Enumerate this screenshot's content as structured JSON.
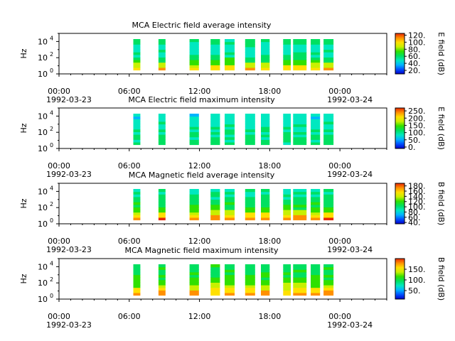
{
  "figure": {
    "background": "#ffffff",
    "colormap": [
      "#0000c8",
      "#0050ff",
      "#00b4ff",
      "#00e8c0",
      "#00e060",
      "#30e000",
      "#c8f000",
      "#ffe000",
      "#ff9000",
      "#e82800"
    ]
  },
  "chart_data": [
    {
      "type": "heatmap",
      "title": "MCA  Electric field average intensity",
      "ylabel": "Hz",
      "ylim": [
        1,
        100000
      ],
      "yscale": "log",
      "y_ticks": [
        1,
        100,
        10000
      ],
      "y_tick_labels": [
        "10",
        "10",
        "10"
      ],
      "y_tick_exponents": [
        "0",
        "2",
        "4"
      ],
      "xlim": [
        0,
        28
      ],
      "x_ticks": [
        0,
        6,
        12,
        18,
        24
      ],
      "x_tick_labels": [
        "00:00",
        "06:00",
        "12:00",
        "18:00",
        "00:00"
      ],
      "x_date_labels": [
        "1992-03-23",
        "1992-03-24"
      ],
      "colorbar": {
        "label": "E field (dB)",
        "range": [
          10,
          125
        ],
        "ticks": [
          20,
          40,
          60,
          80,
          100,
          120
        ],
        "tick_labels": [
          "20.",
          "40.",
          "60.",
          "80.",
          "100.",
          "120."
        ]
      },
      "data_intervals_hours": [
        [
          6.35,
          6.95
        ],
        [
          8.5,
          9.1
        ],
        [
          11.15,
          11.95
        ],
        [
          12.95,
          13.75
        ],
        [
          14.15,
          15.0
        ],
        [
          15.9,
          16.75
        ],
        [
          17.25,
          18.0
        ],
        [
          19.15,
          19.8
        ],
        [
          20.0,
          21.15
        ],
        [
          21.5,
          22.3
        ],
        [
          22.6,
          23.45
        ]
      ],
      "freq_range_hz": [
        3,
        20000
      ],
      "value_profile": [
        102,
        92,
        80,
        70,
        62,
        56,
        52,
        50,
        48,
        50,
        58,
        60
      ],
      "grid": false
    },
    {
      "type": "heatmap",
      "title": "MCA  Electric field maximum intensity",
      "ylabel": "Hz",
      "ylim": [
        1,
        100000
      ],
      "yscale": "log",
      "y_ticks": [
        1,
        100,
        10000
      ],
      "y_tick_labels": [
        "10",
        "10",
        "10"
      ],
      "y_tick_exponents": [
        "0",
        "2",
        "4"
      ],
      "xlim": [
        0,
        28
      ],
      "x_ticks": [
        0,
        6,
        12,
        18,
        24
      ],
      "x_tick_labels": [
        "00:00",
        "06:00",
        "12:00",
        "18:00",
        "00:00"
      ],
      "x_date_labels": [
        "1992-03-23",
        "1992-03-24"
      ],
      "colorbar": {
        "label": "E field (dB)",
        "range": [
          -10,
          270
        ],
        "ticks": [
          0,
          50,
          100,
          150,
          200,
          250
        ],
        "tick_labels": [
          "0.",
          "50.",
          "100.",
          "150.",
          "200.",
          "250."
        ]
      },
      "data_intervals_hours": [
        [
          6.35,
          6.95
        ],
        [
          8.5,
          9.1
        ],
        [
          11.15,
          11.95
        ],
        [
          12.95,
          13.75
        ],
        [
          14.15,
          15.0
        ],
        [
          15.9,
          16.75
        ],
        [
          17.25,
          18.0
        ],
        [
          19.15,
          19.8
        ],
        [
          20.0,
          21.15
        ],
        [
          21.5,
          22.3
        ],
        [
          22.6,
          23.45
        ]
      ],
      "freq_range_hz": [
        3,
        20000
      ],
      "value_profile": [
        110,
        108,
        106,
        104,
        102,
        100,
        96,
        92,
        88,
        84,
        80,
        78
      ],
      "grid": false
    },
    {
      "type": "heatmap",
      "title": "MCA  Magnetic field average intensity",
      "ylabel": "Hz",
      "ylim": [
        1,
        100000
      ],
      "yscale": "log",
      "y_ticks": [
        1,
        100,
        10000
      ],
      "y_tick_labels": [
        "10",
        "10",
        "10"
      ],
      "y_tick_exponents": [
        "0",
        "2",
        "4"
      ],
      "xlim": [
        0,
        28
      ],
      "x_ticks": [
        0,
        6,
        12,
        18,
        24
      ],
      "x_tick_labels": [
        "00:00",
        "06:00",
        "12:00",
        "18:00",
        "00:00"
      ],
      "x_date_labels": [
        "1992-03-23",
        "1992-03-24"
      ],
      "colorbar": {
        "label": "B field (dB)",
        "range": [
          35,
          190
        ],
        "ticks": [
          40,
          60,
          80,
          100,
          120,
          140,
          160,
          180
        ],
        "tick_labels": [
          "40.",
          "60.",
          "80.",
          "100.",
          "120.",
          "140.",
          "160.",
          "180."
        ]
      },
      "data_intervals_hours": [
        [
          6.35,
          6.95
        ],
        [
          8.5,
          9.1
        ],
        [
          11.15,
          11.95
        ],
        [
          12.95,
          13.75
        ],
        [
          14.15,
          15.0
        ],
        [
          15.9,
          16.75
        ],
        [
          17.25,
          18.0
        ],
        [
          19.15,
          19.8
        ],
        [
          20.0,
          21.15
        ],
        [
          21.5,
          22.3
        ],
        [
          22.6,
          23.45
        ]
      ],
      "freq_range_hz": [
        3,
        20000
      ],
      "value_profile": [
        175,
        160,
        145,
        128,
        118,
        112,
        108,
        104,
        100,
        96,
        94,
        92
      ],
      "grid": false
    },
    {
      "type": "heatmap",
      "title": "MCA  Magnetic field maximum intensity",
      "ylabel": "Hz",
      "ylim": [
        1,
        100000
      ],
      "yscale": "log",
      "y_ticks": [
        1,
        100,
        10000
      ],
      "y_tick_labels": [
        "10",
        "10",
        "10"
      ],
      "y_tick_exponents": [
        "0",
        "2",
        "4"
      ],
      "xlim": [
        0,
        28
      ],
      "x_ticks": [
        0,
        6,
        12,
        18,
        24
      ],
      "x_tick_labels": [
        "00:00",
        "06:00",
        "12:00",
        "18:00",
        "00:00"
      ],
      "x_date_labels": [
        "1992-03-23",
        "1992-03-24"
      ],
      "colorbar": {
        "label": "B field (dB)",
        "range": [
          10,
          200
        ],
        "ticks": [
          50,
          100,
          150
        ],
        "tick_labels": [
          "50.",
          "100.",
          "150."
        ]
      },
      "data_intervals_hours": [
        [
          6.35,
          6.95
        ],
        [
          8.5,
          9.1
        ],
        [
          11.15,
          11.95
        ],
        [
          12.95,
          13.75
        ],
        [
          14.15,
          15.0
        ],
        [
          15.9,
          16.75
        ],
        [
          17.25,
          18.0
        ],
        [
          19.15,
          19.8
        ],
        [
          20.0,
          21.15
        ],
        [
          21.5,
          22.3
        ],
        [
          22.6,
          23.45
        ]
      ],
      "freq_range_hz": [
        3,
        20000
      ],
      "value_profile": [
        175,
        165,
        150,
        135,
        122,
        115,
        110,
        106,
        102,
        100,
        98,
        96
      ],
      "grid": false
    }
  ]
}
